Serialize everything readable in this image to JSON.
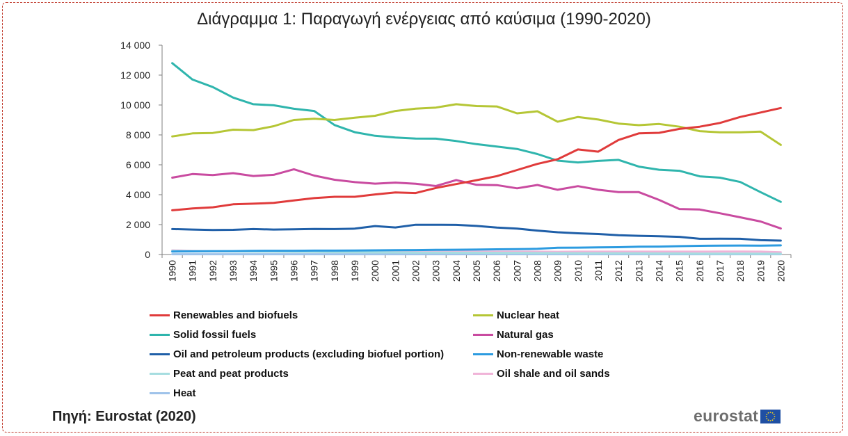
{
  "title": "Διάγραμμα 1: Παραγωγή ενέργειας από καύσιμα (1990-2020)",
  "source": "Πηγή: Eurostat (2020)",
  "logo_text": "eurostat",
  "chart_data": {
    "type": "line",
    "title": "Διάγραμμα 1: Παραγωγή ενέργειας από καύσιμα (1990-2020)",
    "xlabel": "",
    "ylabel": "",
    "ylim": [
      0,
      14000
    ],
    "yticks": [
      0,
      2000,
      4000,
      6000,
      8000,
      10000,
      12000,
      14000
    ],
    "ytick_labels": [
      "0",
      "2 000",
      "4 000",
      "6 000",
      "8 000",
      "10 000",
      "12 000",
      "14 000"
    ],
    "grid": false,
    "legend_position": "bottom",
    "categories": [
      "1990",
      "1991",
      "1992",
      "1993",
      "1994",
      "1995",
      "1996",
      "1997",
      "1998",
      "1999",
      "2000",
      "2001",
      "2002",
      "2003",
      "2004",
      "2005",
      "2006",
      "2007",
      "2008",
      "2009",
      "2010",
      "2011",
      "2012",
      "2013",
      "2014",
      "2015",
      "2016",
      "2017",
      "2018",
      "2019",
      "2020"
    ],
    "series": [
      {
        "name": "Renewables and biofuels",
        "color": "#e03b3b",
        "values": [
          2960,
          3080,
          3160,
          3360,
          3400,
          3450,
          3620,
          3770,
          3860,
          3860,
          4020,
          4150,
          4110,
          4450,
          4710,
          4970,
          5240,
          5650,
          6060,
          6370,
          7030,
          6880,
          7660,
          8100,
          8140,
          8400,
          8550,
          8800,
          9200,
          9500,
          9800
        ]
      },
      {
        "name": "Nuclear heat",
        "color": "#b5c635",
        "values": [
          7900,
          8100,
          8130,
          8350,
          8320,
          8580,
          9000,
          9080,
          9000,
          9150,
          9280,
          9600,
          9760,
          9830,
          10050,
          9930,
          9900,
          9440,
          9580,
          8880,
          9200,
          9030,
          8760,
          8650,
          8730,
          8550,
          8250,
          8170,
          8170,
          8220,
          7330
        ]
      },
      {
        "name": "Solid fossil fuels",
        "color": "#2fb5ad",
        "values": [
          12800,
          11700,
          11200,
          10500,
          10050,
          9980,
          9750,
          9600,
          8660,
          8180,
          7940,
          7830,
          7760,
          7750,
          7590,
          7380,
          7220,
          7060,
          6720,
          6280,
          6160,
          6260,
          6330,
          5880,
          5670,
          5600,
          5230,
          5140,
          4850,
          4170,
          3520
        ]
      },
      {
        "name": "Natural gas",
        "color": "#c94ba0",
        "values": [
          5140,
          5380,
          5310,
          5440,
          5250,
          5330,
          5700,
          5280,
          5000,
          4840,
          4740,
          4810,
          4730,
          4580,
          4980,
          4660,
          4640,
          4430,
          4650,
          4330,
          4570,
          4330,
          4170,
          4170,
          3650,
          3040,
          3010,
          2760,
          2490,
          2210,
          1740
        ]
      },
      {
        "name": "Oil and petroleum products (excluding biofuel portion)",
        "color": "#1f5fa8",
        "values": [
          1700,
          1670,
          1640,
          1650,
          1700,
          1670,
          1690,
          1710,
          1700,
          1730,
          1900,
          1810,
          1990,
          1990,
          1980,
          1910,
          1800,
          1730,
          1600,
          1490,
          1420,
          1370,
          1290,
          1250,
          1220,
          1180,
          1050,
          1060,
          1050,
          960,
          930
        ]
      },
      {
        "name": "Non-renewable waste",
        "color": "#2c9be0",
        "values": [
          200,
          210,
          220,
          230,
          240,
          250,
          250,
          260,
          260,
          270,
          280,
          290,
          300,
          310,
          320,
          330,
          350,
          360,
          380,
          450,
          460,
          480,
          490,
          520,
          530,
          560,
          580,
          590,
          600,
          590,
          610
        ]
      },
      {
        "name": "Peat and peat products",
        "color": "#a6dde0",
        "values": [
          240,
          230,
          220,
          210,
          200,
          190,
          180,
          170,
          160,
          150,
          140,
          140,
          130,
          130,
          120,
          120,
          110,
          110,
          100,
          100,
          90,
          90,
          80,
          80,
          70,
          70,
          60,
          60,
          60,
          50,
          50
        ]
      },
      {
        "name": "Oil shale and oil sands",
        "color": "#f0b4d8",
        "values": [
          280,
          240,
          220,
          210,
          210,
          220,
          220,
          210,
          200,
          200,
          200,
          200,
          200,
          200,
          200,
          190,
          190,
          190,
          190,
          180,
          190,
          190,
          190,
          190,
          190,
          190,
          190,
          200,
          200,
          190,
          150
        ]
      },
      {
        "name": "Heat",
        "color": "#9fc3ea",
        "values": [
          20,
          20,
          20,
          20,
          20,
          20,
          20,
          20,
          20,
          20,
          20,
          20,
          20,
          20,
          20,
          20,
          20,
          20,
          20,
          20,
          20,
          20,
          20,
          20,
          20,
          20,
          20,
          20,
          20,
          20,
          20
        ]
      }
    ]
  }
}
